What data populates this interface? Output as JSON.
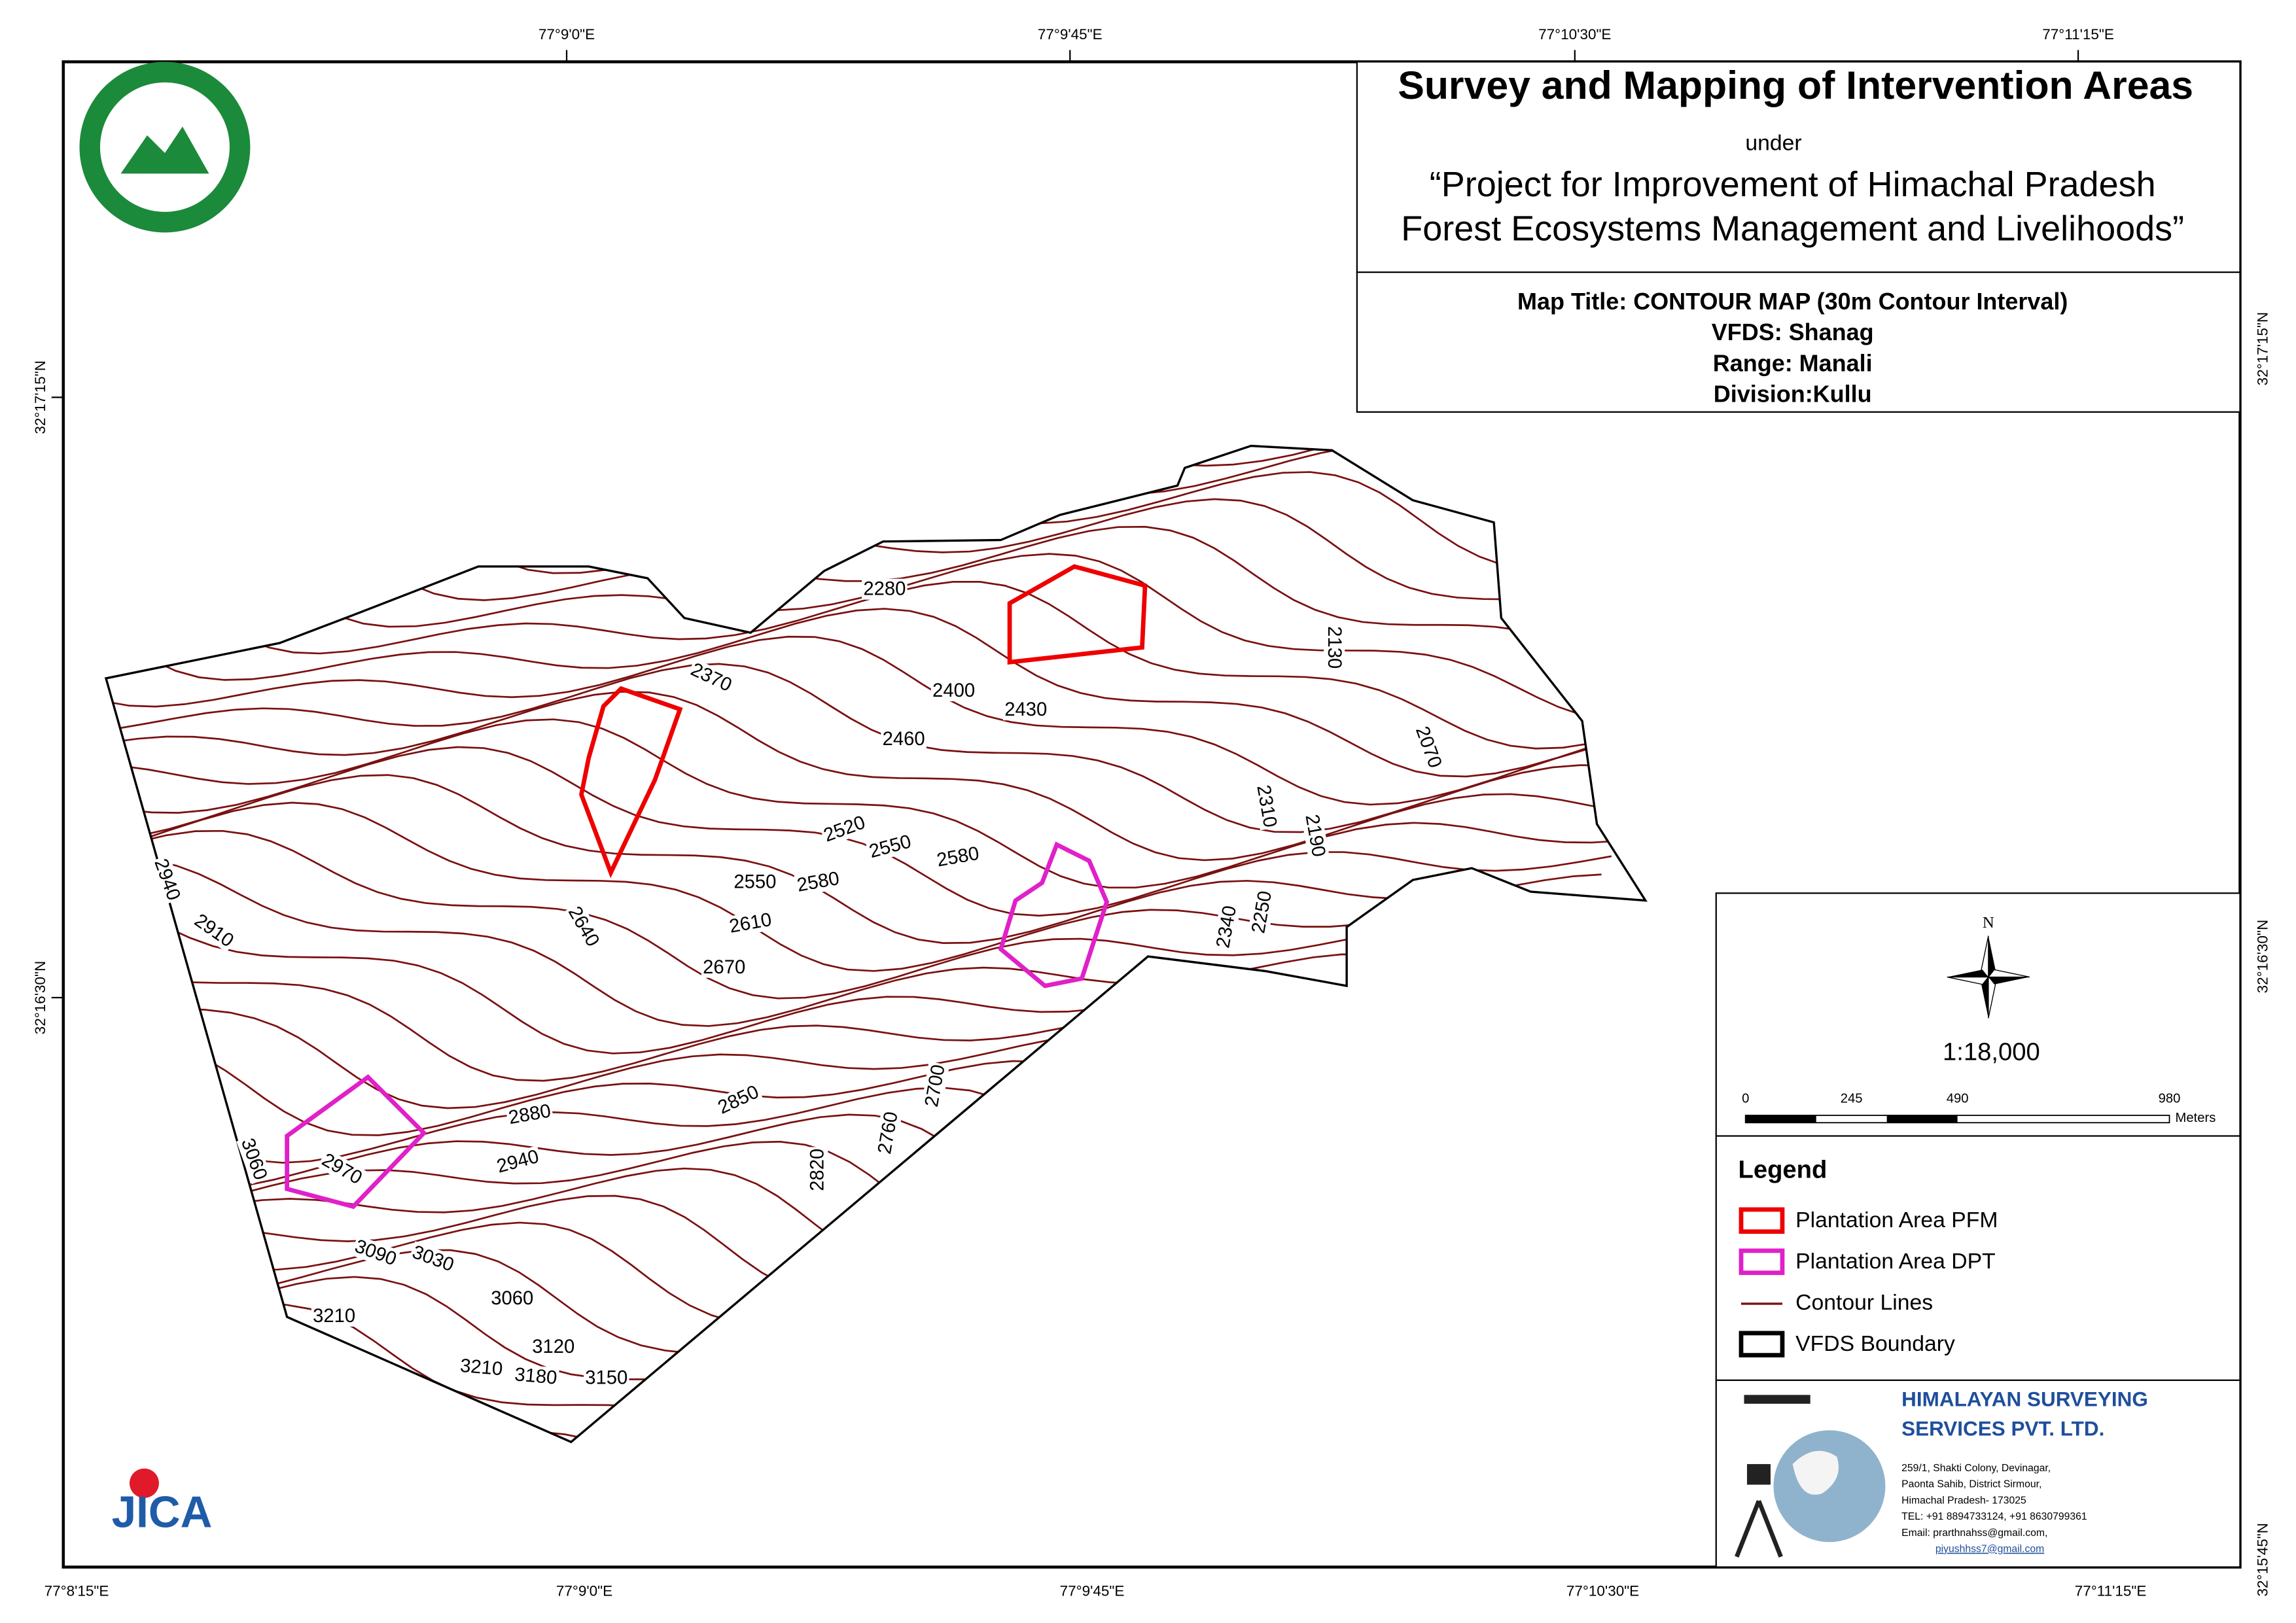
{
  "title": "Survey and Mapping of Intervention Areas",
  "under": "under",
  "project": [
    "“Project for Improvement of Himachal Pradesh",
    "Forest Ecosystems Management and Livelihoods”"
  ],
  "map_info": [
    "Map Title: CONTOUR MAP (30m Contour Interval)",
    "VFDS: Shanag",
    "Range: Manali",
    "Division:Kullu"
  ],
  "north": "N",
  "scale": "1:18,000",
  "scale_bar": {
    "ticks": [
      "0",
      "245",
      "490",
      "980"
    ],
    "unit": "Meters"
  },
  "legend": {
    "title": "Legend",
    "items": [
      "Plantation Area PFM",
      "Plantation Area DPT",
      "Contour Lines",
      "VFDS Boundary"
    ]
  },
  "company": {
    "name": [
      "HIMALAYAN SURVEYING",
      "SERVICES PVT. LTD."
    ],
    "address": [
      "259/1, Shakti Colony, Devinagar,",
      "Paonta Sahib, District Sirmour,",
      "Himachal Pradesh- 173025",
      "TEL: +91 8894733124, +91 8630799361",
      "Email: prarthnahss@gmail.com,",
      "piyushhss7@gmail.com"
    ]
  },
  "jica": "JICA",
  "grid_labels": {
    "top": [
      "77°9'0\"E",
      "77°9'45\"E",
      "77°10'30\"E",
      "77°11'15\"E"
    ],
    "bottom": [
      "77°8'15\"E",
      "77°9'0\"E",
      "77°9'45\"E",
      "77°10'30\"E",
      "77°11'15\"E"
    ],
    "left": [
      "32°17'15\"N",
      "32°16'30\"N"
    ],
    "right": [
      "32°17'15\"N",
      "32°16'30\"N",
      "32°15'45\"N"
    ]
  },
  "contour_labels": [
    2280,
    2370,
    2400,
    2430,
    2460,
    2130,
    2070,
    2310,
    2190,
    2520,
    2550,
    2580,
    2550,
    2580,
    2610,
    2640,
    2670,
    2940,
    2910,
    2340,
    2250,
    2700,
    2760,
    2820,
    2850,
    2880,
    2940,
    2970,
    3060,
    3090,
    3030,
    3060,
    3120,
    3150,
    3180,
    3210,
    3210
  ]
}
